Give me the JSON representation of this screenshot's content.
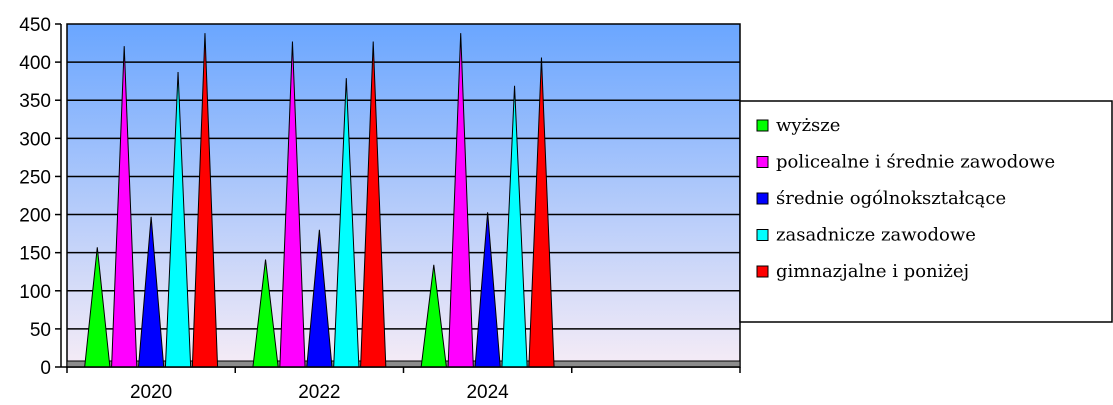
{
  "chart_data": {
    "type": "bar",
    "style": "cone",
    "categories": [
      "2020",
      "2022",
      "2024",
      ""
    ],
    "series": [
      {
        "name": "wyższe",
        "color": "#00ff00",
        "values": [
          157,
          141,
          134,
          null
        ]
      },
      {
        "name": "policealne i średnie zawodowe",
        "color": "#ff00ff",
        "values": [
          421,
          427,
          438,
          null
        ]
      },
      {
        "name": "średnie ogólnokształcące",
        "color": "#0000ff",
        "values": [
          197,
          180,
          203,
          null
        ]
      },
      {
        "name": "zasadnicze zawodowe",
        "color": "#00ffff",
        "values": [
          387,
          379,
          369,
          null
        ]
      },
      {
        "name": "gimnazjalne i poniżej",
        "color": "#ff0000",
        "values": [
          438,
          427,
          406,
          null
        ]
      }
    ],
    "ylim": [
      0,
      450
    ],
    "yticks": [
      "0",
      "50",
      "100",
      "150",
      "200",
      "250",
      "300",
      "350",
      "400",
      "450"
    ],
    "grid": true,
    "legend": "right",
    "background_gradient": [
      "#6aa6ff",
      "#f6ecf6"
    ]
  }
}
